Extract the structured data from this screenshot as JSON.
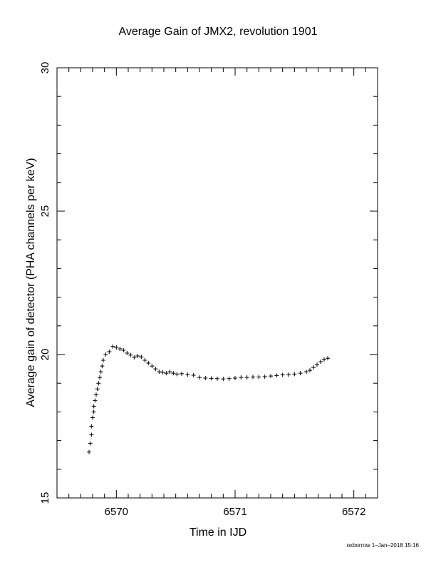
{
  "chart_data": {
    "type": "scatter",
    "title": "Average Gain of JMX2, revolution 1901",
    "xlabel": "Time in IJD",
    "ylabel": "Average gain of detector (PHA channels per keV)",
    "xlim": [
      6569.5,
      6572.2
    ],
    "ylim": [
      15,
      30
    ],
    "xticks_major": [
      6570,
      6571,
      6572
    ],
    "xtick_labels": [
      "6570",
      "6571",
      "6572"
    ],
    "yticks_major": [
      15,
      20,
      25,
      30
    ],
    "ytick_labels": [
      "15",
      "20",
      "25",
      "30"
    ],
    "grid": false,
    "marker": "plus",
    "series": [
      {
        "color": "#000000",
        "points": [
          [
            6569.77,
            16.6
          ],
          [
            6569.78,
            16.9
          ],
          [
            6569.79,
            17.2
          ],
          [
            6569.79,
            17.5
          ],
          [
            6569.8,
            17.8
          ],
          [
            6569.81,
            18.0
          ],
          [
            6569.81,
            18.2
          ],
          [
            6569.82,
            18.4
          ],
          [
            6569.83,
            18.6
          ],
          [
            6569.84,
            18.8
          ],
          [
            6569.85,
            19.0
          ],
          [
            6569.86,
            19.2
          ],
          [
            6569.87,
            19.4
          ],
          [
            6569.88,
            19.6
          ],
          [
            6569.89,
            19.8
          ],
          [
            6569.91,
            20.0
          ],
          [
            6569.94,
            20.1
          ],
          [
            6569.97,
            20.28
          ],
          [
            6570.0,
            20.25
          ],
          [
            6570.03,
            20.2
          ],
          [
            6570.06,
            20.15
          ],
          [
            6570.09,
            20.05
          ],
          [
            6570.12,
            19.98
          ],
          [
            6570.15,
            19.9
          ],
          [
            6570.18,
            19.95
          ],
          [
            6570.21,
            19.92
          ],
          [
            6570.24,
            19.8
          ],
          [
            6570.27,
            19.7
          ],
          [
            6570.3,
            19.6
          ],
          [
            6570.33,
            19.5
          ],
          [
            6570.36,
            19.4
          ],
          [
            6570.39,
            19.38
          ],
          [
            6570.42,
            19.35
          ],
          [
            6570.45,
            19.4
          ],
          [
            6570.48,
            19.35
          ],
          [
            6570.51,
            19.32
          ],
          [
            6570.55,
            19.33
          ],
          [
            6570.6,
            19.3
          ],
          [
            6570.65,
            19.28
          ],
          [
            6570.7,
            19.2
          ],
          [
            6570.75,
            19.18
          ],
          [
            6570.8,
            19.17
          ],
          [
            6570.85,
            19.16
          ],
          [
            6570.9,
            19.15
          ],
          [
            6570.95,
            19.16
          ],
          [
            6571.0,
            19.18
          ],
          [
            6571.05,
            19.2
          ],
          [
            6571.1,
            19.2
          ],
          [
            6571.15,
            19.22
          ],
          [
            6571.2,
            19.22
          ],
          [
            6571.25,
            19.23
          ],
          [
            6571.3,
            19.25
          ],
          [
            6571.35,
            19.27
          ],
          [
            6571.4,
            19.29
          ],
          [
            6571.45,
            19.3
          ],
          [
            6571.5,
            19.32
          ],
          [
            6571.55,
            19.35
          ],
          [
            6571.6,
            19.4
          ],
          [
            6571.63,
            19.45
          ],
          [
            6571.66,
            19.55
          ],
          [
            6571.69,
            19.65
          ],
          [
            6571.72,
            19.75
          ],
          [
            6571.75,
            19.83
          ],
          [
            6571.78,
            19.87
          ]
        ]
      }
    ]
  },
  "footer": "oxborrow  1–Jan–2018 15:16"
}
